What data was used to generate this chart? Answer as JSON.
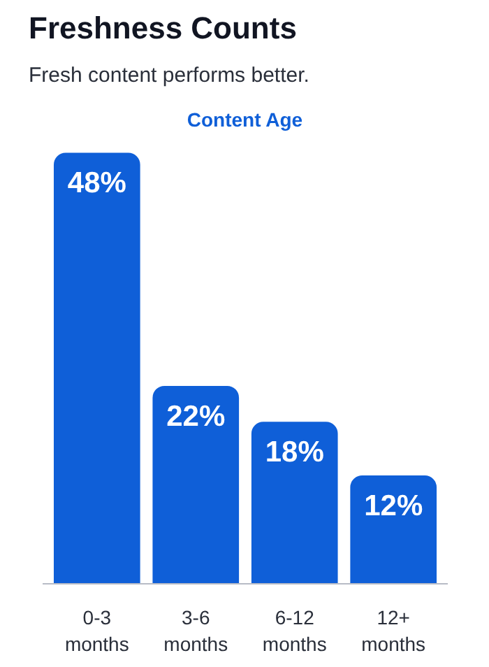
{
  "chart_data": {
    "type": "bar",
    "title": "Freshness Counts",
    "subtitle": "Fresh content performs better.",
    "xlabel": "Content Age",
    "categories": [
      "0-3 months",
      "3-6 months",
      "6-12 months",
      "12+ months"
    ],
    "values": [
      48,
      22,
      18,
      12
    ],
    "value_labels": [
      "48%",
      "22%",
      "18%",
      "12%"
    ],
    "color": "#0f5fd8",
    "tick_labels": "x",
    "grid": false
  }
}
